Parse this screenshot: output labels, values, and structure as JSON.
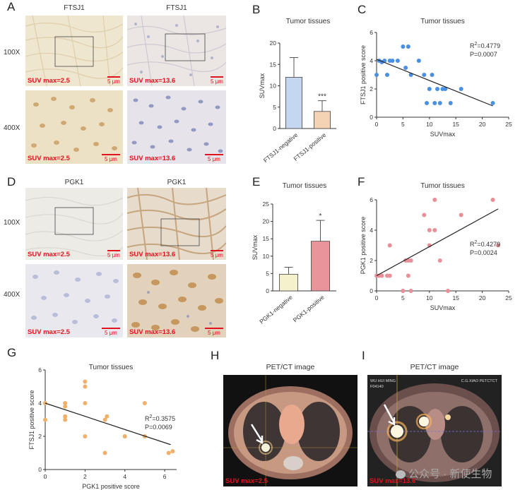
{
  "panel_letters": {
    "A": "A",
    "B": "B",
    "C": "C",
    "D": "D",
    "E": "E",
    "F": "F",
    "G": "G",
    "H": "H",
    "I": "I"
  },
  "magnification": {
    "low": "100X",
    "high": "400X"
  },
  "ihc": {
    "ftsj1_label": "FTSJ1",
    "pgk1_label": "PGK1",
    "suv_low": "SUV max=2.5",
    "suv_high": "SUV max=13.6",
    "scale": "5 μm",
    "colors": {
      "background_negative": "#efe7d3",
      "background_positive": "#e9e2d6",
      "nuclei": "#7d86b8",
      "brown_stain": "#c79a5a"
    }
  },
  "pet": {
    "title": "PET/CT image",
    "suv_low": "SUV max=2.5",
    "suv_high": "SUV max=13.6",
    "patient_name": "WU HUI MING",
    "patient_id": "F04140",
    "hospital": "C.G.XIAO PETCTCT"
  },
  "watermark": "公众号 · 新使生物",
  "chart_data": [
    {
      "id": "B",
      "type": "bar",
      "title": "Tumor tissues",
      "categories": [
        "FTSJ1-negative",
        "FTSJ1-positive"
      ],
      "values": [
        12.0,
        4.0
      ],
      "errors": [
        4.6,
        2.5
      ],
      "colors": [
        "#c5d7f0",
        "#f4d3b5"
      ],
      "ylabel": "SUVmax",
      "ylim": [
        0,
        20
      ],
      "yticks": [
        0,
        5,
        10,
        15,
        20
      ],
      "significance": [
        "",
        "***"
      ]
    },
    {
      "id": "E",
      "type": "bar",
      "title": "Tumor tissues",
      "categories": [
        "PGK1-negative",
        "PGK1-positive"
      ],
      "values": [
        4.8,
        14.3
      ],
      "errors": [
        2.0,
        6.0
      ],
      "colors": [
        "#f3f2cc",
        "#e8949a"
      ],
      "ylabel": "SUVmax",
      "ylim": [
        0,
        25
      ],
      "yticks": [
        0,
        5,
        10,
        15,
        20,
        25
      ],
      "significance": [
        "",
        "*"
      ]
    },
    {
      "id": "C",
      "type": "scatter",
      "title": "Tumor tissues",
      "xlabel": "SUVmax",
      "ylabel": "FTSJ1 positive score",
      "xlim": [
        0,
        25
      ],
      "ylim": [
        0,
        6
      ],
      "xticks": [
        0,
        5,
        10,
        15,
        20,
        25
      ],
      "yticks": [
        0,
        2,
        4,
        6
      ],
      "point_color": "#4a90e2",
      "points": [
        [
          0,
          3
        ],
        [
          0.5,
          4
        ],
        [
          1,
          3.9
        ],
        [
          1.5,
          4
        ],
        [
          2,
          3
        ],
        [
          2.5,
          4
        ],
        [
          3,
          4
        ],
        [
          4,
          4
        ],
        [
          5,
          5
        ],
        [
          5.5,
          3.5
        ],
        [
          6,
          5
        ],
        [
          6.5,
          3
        ],
        [
          8,
          4
        ],
        [
          9,
          3
        ],
        [
          9.5,
          1
        ],
        [
          10,
          2
        ],
        [
          10.5,
          3
        ],
        [
          11,
          1
        ],
        [
          11.5,
          2
        ],
        [
          12,
          1
        ],
        [
          12.5,
          2
        ],
        [
          13,
          2
        ],
        [
          14,
          1
        ],
        [
          16,
          2
        ],
        [
          22,
          1
        ]
      ],
      "fit": [
        [
          0,
          4.1
        ],
        [
          22,
          0.8
        ]
      ],
      "annotation": {
        "r2": "R²=0.4779",
        "p": "P=0.0007"
      }
    },
    {
      "id": "F",
      "type": "scatter",
      "title": "Tumor tissues",
      "xlabel": "SUVmax",
      "ylabel": "PGK1 positive score",
      "xlim": [
        0,
        25
      ],
      "ylim": [
        0,
        6
      ],
      "xticks": [
        0,
        5,
        10,
        15,
        20,
        25
      ],
      "yticks": [
        0,
        2,
        4,
        6
      ],
      "point_color": "#e88f97",
      "points": [
        [
          0,
          1
        ],
        [
          0.5,
          1
        ],
        [
          1,
          1
        ],
        [
          2,
          1
        ],
        [
          2.5,
          1
        ],
        [
          2.5,
          3
        ],
        [
          5,
          0
        ],
        [
          5.5,
          2
        ],
        [
          6,
          2
        ],
        [
          6,
          1
        ],
        [
          6.5,
          0
        ],
        [
          6.5,
          2
        ],
        [
          9,
          5
        ],
        [
          10,
          3
        ],
        [
          10,
          4
        ],
        [
          11,
          4
        ],
        [
          11,
          6
        ],
        [
          12,
          2
        ],
        [
          13.5,
          0
        ],
        [
          16,
          5
        ],
        [
          22,
          6
        ],
        [
          23,
          3
        ]
      ],
      "fit": [
        [
          0,
          1.0
        ],
        [
          23,
          5.4
        ]
      ],
      "annotation": {
        "r2": "R²=0.4279",
        "p": "P=0.0024"
      }
    },
    {
      "id": "G",
      "type": "scatter",
      "title": "Tumor tissues",
      "xlabel": "PGK1 positive score",
      "ylabel": "FTSJ1 positive score",
      "xlim": [
        0,
        6.6
      ],
      "ylim": [
        0,
        6
      ],
      "xticks": [
        0,
        2,
        4,
        6
      ],
      "yticks": [
        0,
        2,
        4,
        6
      ],
      "point_color": "#f0b06a",
      "points": [
        [
          0,
          3
        ],
        [
          0,
          4
        ],
        [
          1,
          4
        ],
        [
          1,
          3.8
        ],
        [
          1,
          3
        ],
        [
          1,
          3.2
        ],
        [
          2,
          5
        ],
        [
          2,
          5.3
        ],
        [
          2,
          2
        ],
        [
          2,
          4
        ],
        [
          3,
          3
        ],
        [
          3,
          1
        ],
        [
          3.1,
          3.2
        ],
        [
          4,
          2
        ],
        [
          4,
          2
        ],
        [
          5,
          2
        ],
        [
          5,
          4
        ],
        [
          6.2,
          1
        ],
        [
          6.4,
          1.1
        ]
      ],
      "fit": [
        [
          0,
          4.0
        ],
        [
          6.3,
          1.5
        ]
      ],
      "annotation": {
        "r2": "R²=0.3575",
        "p": "P=0.0069"
      }
    }
  ]
}
